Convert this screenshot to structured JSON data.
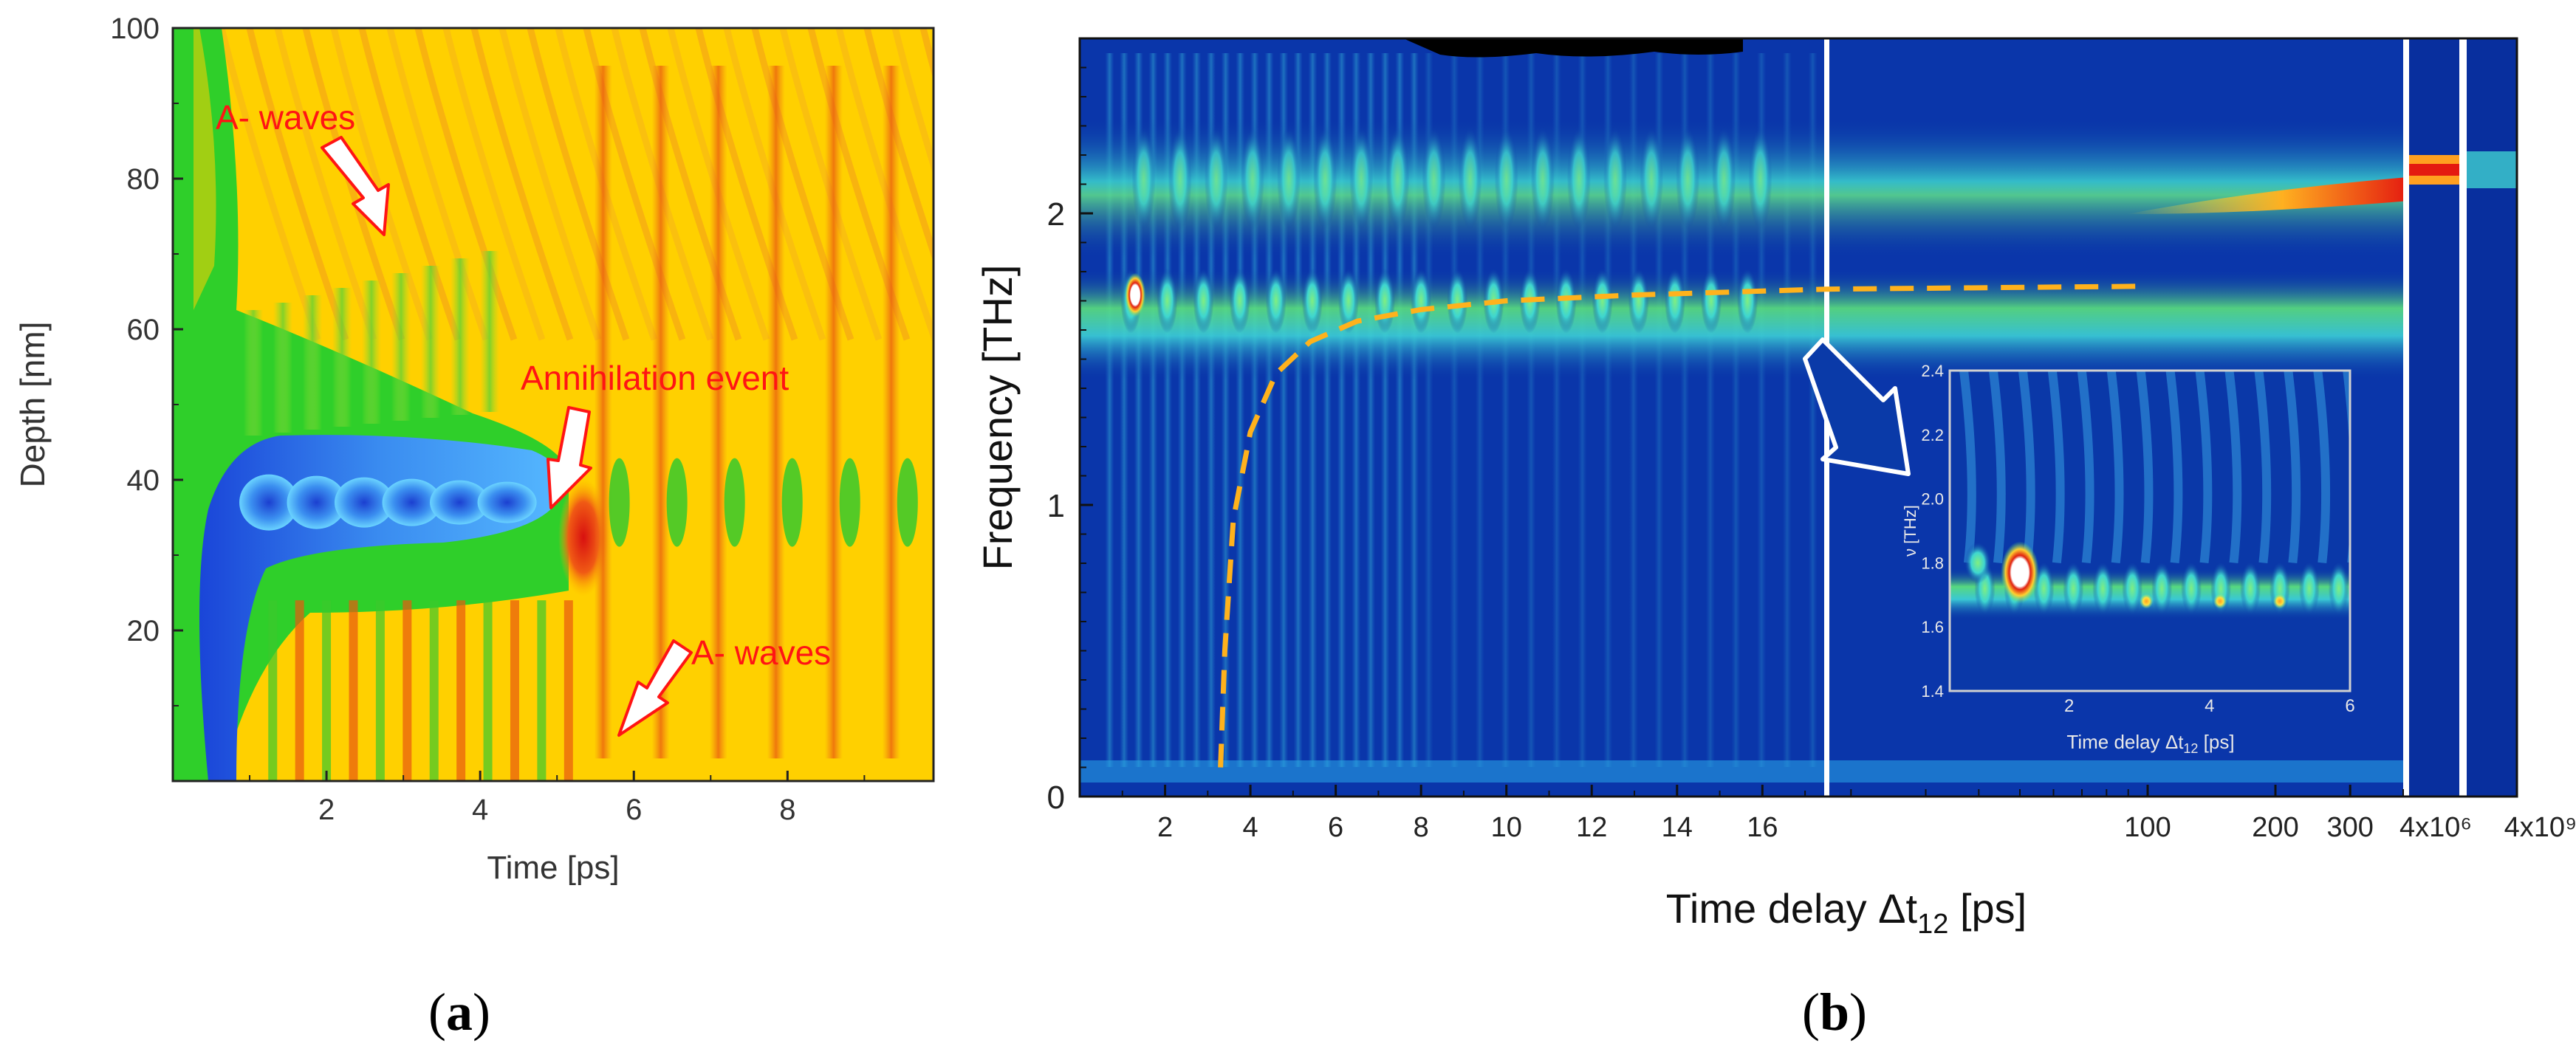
{
  "colors": {
    "heat_bg": "#ffd000",
    "heat_green": "#22cc22",
    "heat_blue": "#2f6fe0",
    "heat_red": "#e82a12",
    "spec_bg": "#082f9e",
    "spec_cyan": "#4fe0d0",
    "spec_green": "#62e04a",
    "dashed_fit": "#ffb21c",
    "annotation": "#ff1414"
  },
  "panel_a": {
    "label_open": "(",
    "label_letter": "a",
    "label_close": ")",
    "annotations": {
      "a_waves_top": "A- waves",
      "annihilation": "Annihilation event",
      "a_waves_bottom": "A- waves"
    }
  },
  "panel_b": {
    "label_open": "(",
    "label_letter": "b",
    "label_close": ")",
    "inset": {
      "xlabel": "Time delay Δt",
      "xlabel_sub": "12",
      "xlabel_tail": " [ps]",
      "ylabel": "ν [THz]",
      "xticks": [
        "2",
        "4",
        "6"
      ],
      "yticks": [
        "2.4",
        "2.2",
        "2.0",
        "1.8",
        "1.6",
        "1.4"
      ]
    }
  },
  "chart_data": [
    {
      "type": "heatmap",
      "title": "",
      "xlabel": "Time [ps]",
      "ylabel": "Depth [nm]",
      "xlim": [
        0,
        9.9
      ],
      "ylim": [
        0,
        100
      ],
      "xticks": [
        2,
        4,
        6,
        8
      ],
      "yticks": [
        20,
        40,
        60,
        80,
        100
      ],
      "colormap": "yellow-background with green, blue (min) and red (max) features",
      "features": [
        {
          "name": "domain wall pair (blue)",
          "t_start": 0.3,
          "t_end": 5.0,
          "depth_center": 38
        },
        {
          "name": "annihilation point",
          "t": 5.4,
          "depth": 35
        },
        {
          "name": "emitted oscillations after annihilation",
          "t_start": 5.6,
          "t_end": 9.9,
          "period_ps": 0.75
        }
      ]
    },
    {
      "type": "heatmap",
      "title": "",
      "xlabel": "Time delay Δt12 [ps]",
      "ylabel": "Frequency [THz]",
      "ylim": [
        0,
        2.6
      ],
      "yticks": [
        0,
        1,
        2
      ],
      "xticks": [
        "2",
        "4",
        "6",
        "8",
        "10",
        "12",
        "14",
        "16",
        "100",
        "200",
        "300",
        "4x10⁶",
        "4x10⁹"
      ],
      "x_segments": [
        {
          "range": [
            0,
            17.5
          ],
          "scale": "linear"
        },
        {
          "range": [
            17.5,
            400
          ],
          "scale": "log"
        },
        {
          "range": [
            4000000.0,
            4000000.0
          ],
          "scale": "single"
        },
        {
          "range": [
            4000000000.0,
            4000000000.0
          ],
          "scale": "single"
        }
      ],
      "bands": [
        {
          "freq_THz": 2.1,
          "note": "upper magnon band, strengthens at long delay"
        },
        {
          "freq_THz": 1.7,
          "note": "lower magnon band"
        },
        {
          "freq_THz": 0.05,
          "note": "near-zero frequency band"
        }
      ],
      "fit_curve": {
        "style": "dashed",
        "x": [
          3.3,
          3.4,
          3.6,
          4.0,
          4.6,
          5.4,
          6.5,
          8.0,
          10.0,
          13.0,
          17.5,
          100
        ],
        "y": [
          0.1,
          0.5,
          0.95,
          1.25,
          1.45,
          1.56,
          1.63,
          1.67,
          1.7,
          1.72,
          1.74,
          1.75
        ]
      }
    },
    {
      "type": "heatmap",
      "title": "inset",
      "xlabel": "Time delay Δt12 [ps]",
      "ylabel": "ν [THz]",
      "xlim": [
        0.3,
        6
      ],
      "ylim": [
        1.4,
        2.4
      ],
      "xticks": [
        2,
        4,
        6
      ],
      "yticks": [
        1.4,
        1.6,
        1.8,
        2.0,
        2.2,
        2.4
      ],
      "features": [
        {
          "name": "peak",
          "t": 1.3,
          "freq": 1.77
        },
        {
          "name": "band",
          "freq": 1.7
        }
      ]
    }
  ]
}
